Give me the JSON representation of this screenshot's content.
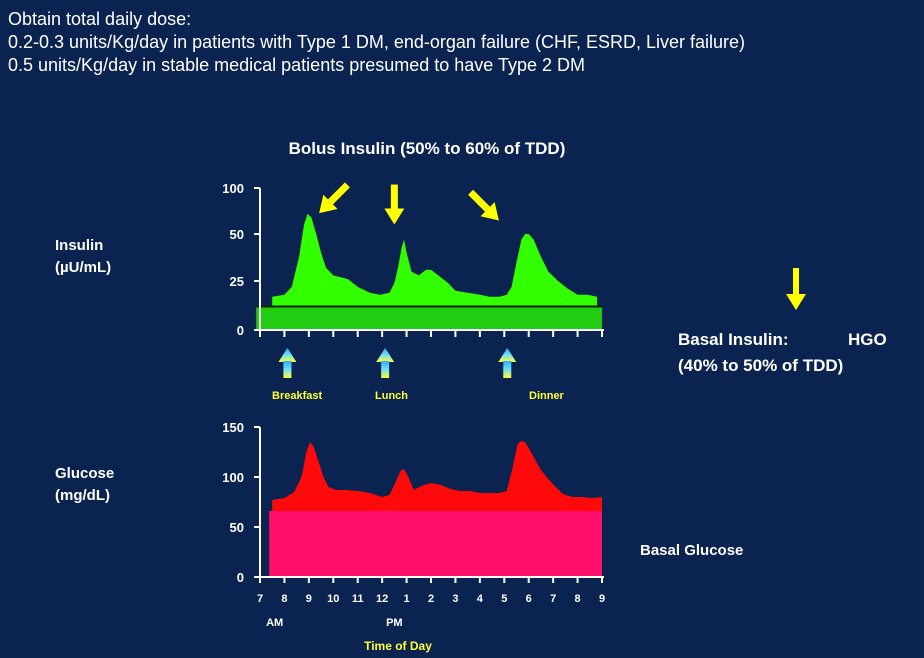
{
  "intro": {
    "heading": "Obtain total daily dose:",
    "line1": "0.2-0.3 units/Kg/day in patients with Type 1 DM, end-organ failure (CHF, ESRD, Liver failure)",
    "line2": "0.5 units/Kg/day in stable medical patients presumed to have Type 2 DM"
  },
  "colors": {
    "background": "#0b2350",
    "insulin_fill": "#33ff00",
    "basal_insulin_band": "#22cc11",
    "glucose_fill": "#ff0a0a",
    "basal_glucose_band": "#ff0f6a",
    "arrow_yellow": "#ffff00",
    "meal_label": "#ffff33",
    "meal_arrow_top": "#33aaff",
    "meal_arrow_bottom": "#ffff33"
  },
  "chart_data": [
    {
      "type": "area",
      "title": "Bolus Insulin (50% to 60% of TDD)",
      "ylabel": "Insulin (µU/mL)",
      "ylabel_lines": [
        "Insulin",
        "(µU/mL)"
      ],
      "y_ticks": [
        "100",
        "50",
        "25",
        "0"
      ],
      "y_tick_values": [
        100,
        50,
        25,
        0
      ],
      "xlim": [
        7,
        21
      ],
      "x_tick_count": 15,
      "basal_band_level": 12,
      "series": [
        {
          "name": "Bolus Insulin",
          "x": [
            7.5,
            8.0,
            8.3,
            8.6,
            8.8,
            8.95,
            9.1,
            9.3,
            9.5,
            9.7,
            10.0,
            10.3,
            10.6,
            11.0,
            11.5,
            11.9,
            12.3,
            12.5,
            12.65,
            12.8,
            12.9,
            13.0,
            13.2,
            13.5,
            13.8,
            14.0,
            14.3,
            14.7,
            15.0,
            15.5,
            16.0,
            16.4,
            16.8,
            17.1,
            17.3,
            17.5,
            17.7,
            17.85,
            18.0,
            18.2,
            18.5,
            18.8,
            19.2,
            19.6,
            20.0,
            20.4,
            20.8
          ],
          "values": [
            17,
            18,
            22,
            38,
            60,
            72,
            68,
            50,
            40,
            32,
            28,
            27,
            26,
            22,
            19,
            18,
            19,
            24,
            32,
            43,
            47,
            40,
            30,
            28,
            31,
            31,
            28,
            24,
            20,
            19,
            18,
            17,
            17,
            18,
            22,
            35,
            47,
            50,
            50,
            47,
            38,
            30,
            25,
            21,
            18,
            18,
            17
          ]
        }
      ],
      "meal_markers": [
        {
          "label": "Breakfast",
          "x": 8.0
        },
        {
          "label": "Lunch",
          "x": 12.0
        },
        {
          "label": "Dinner",
          "x": 17.0
        }
      ],
      "bolus_arrows": [
        {
          "direction": "down-left",
          "x": 10.0,
          "y": 88
        },
        {
          "direction": "down",
          "x": 12.5,
          "y": 82
        },
        {
          "direction": "down-right",
          "x": 16.2,
          "y": 80
        }
      ]
    },
    {
      "type": "area",
      "ylabel": "Glucose (mg/dL)",
      "ylabel_lines": [
        "Glucose",
        "(mg/dL)"
      ],
      "y_ticks": [
        "150",
        "100",
        "50",
        "0"
      ],
      "y_tick_values": [
        150,
        100,
        50,
        0
      ],
      "xlim": [
        7,
        21
      ],
      "x_tick_labels": [
        "7",
        "8",
        "9",
        "10",
        "11",
        "12",
        "1",
        "2",
        "3",
        "4",
        "5",
        "6",
        "7",
        "8",
        "9"
      ],
      "x_tick_values": [
        7,
        8,
        9,
        10,
        11,
        12,
        13,
        14,
        15,
        16,
        17,
        18,
        19,
        20,
        21
      ],
      "x_sublabels": [
        {
          "label": "AM",
          "x": 7.6
        },
        {
          "label": "PM",
          "x": 12.5
        }
      ],
      "xlabel": "Time of Day",
      "basal_band_level": 68,
      "series": [
        {
          "name": "Glucose",
          "x": [
            7.5,
            8.0,
            8.4,
            8.7,
            8.9,
            9.05,
            9.2,
            9.4,
            9.6,
            9.8,
            10.1,
            10.5,
            11.0,
            11.5,
            12.0,
            12.3,
            12.55,
            12.75,
            12.9,
            13.05,
            13.3,
            13.6,
            14.0,
            14.4,
            14.8,
            15.2,
            15.6,
            16.0,
            16.4,
            16.8,
            17.1,
            17.35,
            17.55,
            17.7,
            17.85,
            18.0,
            18.2,
            18.5,
            18.8,
            19.1,
            19.4,
            19.8,
            20.2,
            20.6,
            21.0
          ],
          "values": [
            77,
            79,
            85,
            100,
            125,
            135,
            130,
            115,
            100,
            90,
            87,
            87,
            86,
            84,
            80,
            82,
            95,
            106,
            108,
            101,
            87,
            91,
            94,
            92,
            88,
            86,
            86,
            84,
            84,
            84,
            86,
            110,
            133,
            136,
            135,
            129,
            120,
            107,
            98,
            90,
            83,
            80,
            80,
            79,
            80
          ]
        }
      ]
    }
  ],
  "basal_insulin": {
    "label": "Basal Insulin:",
    "hgo": "HGO",
    "pct": "(40% to 50% of TDD)"
  },
  "basal_glucose": {
    "label": "Basal Glucose"
  }
}
